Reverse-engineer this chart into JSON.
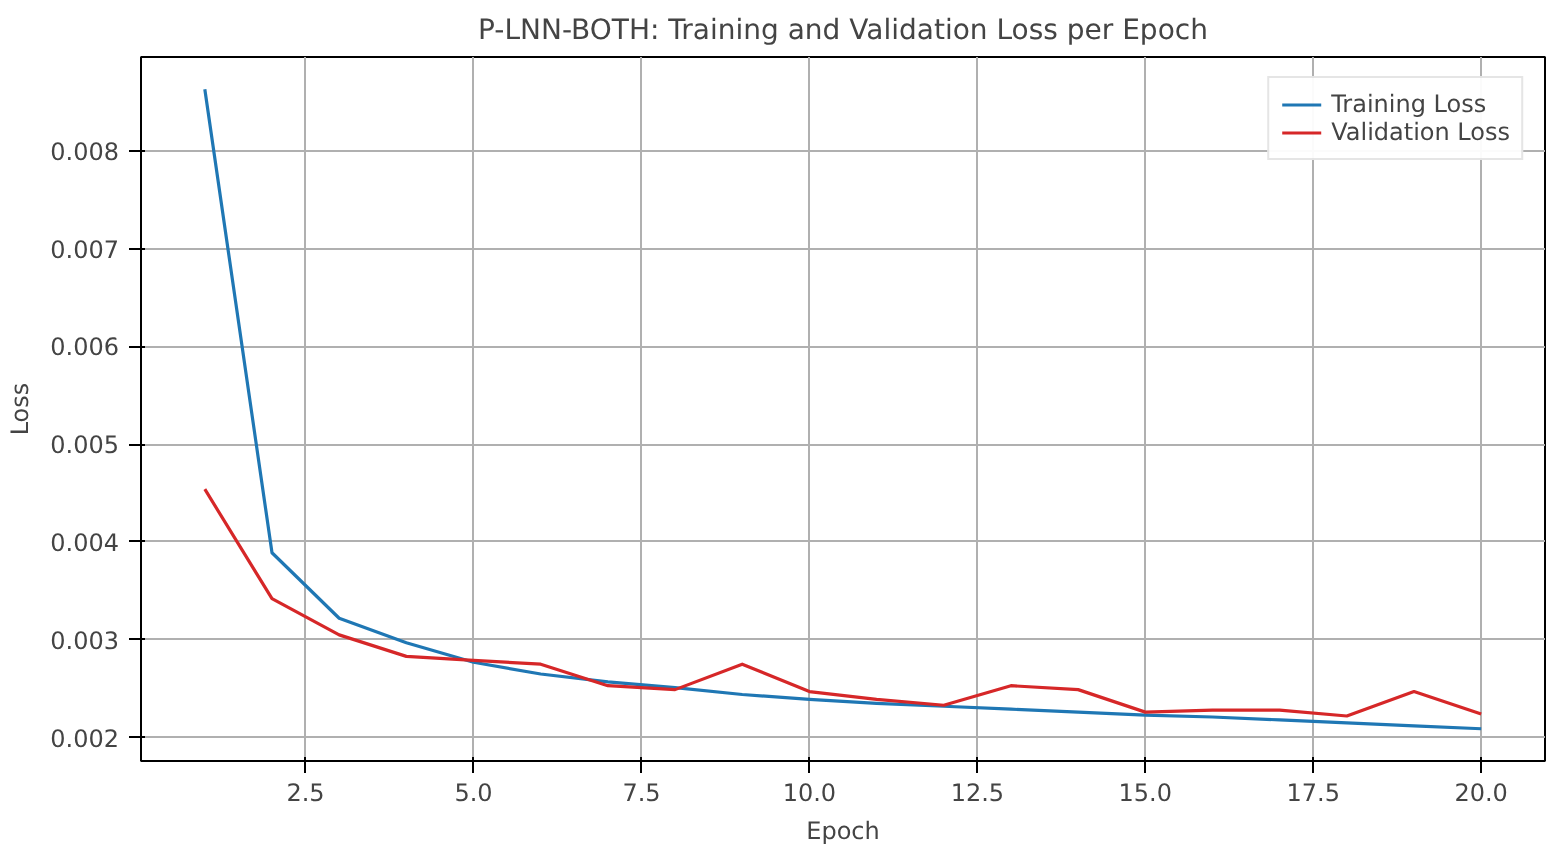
{
  "chart_data": {
    "type": "line",
    "title": "P-LNN-BOTH: Training and Validation Loss per Epoch",
    "xlabel": "Epoch",
    "ylabel": "Loss",
    "x": [
      1,
      2,
      3,
      4,
      5,
      6,
      7,
      8,
      9,
      10,
      11,
      12,
      13,
      14,
      15,
      16,
      17,
      18,
      19,
      20
    ],
    "series": [
      {
        "name": "Training Loss",
        "color": "#1f77b4",
        "values": [
          0.00863,
          0.00389,
          0.00322,
          0.00297,
          0.00277,
          0.00265,
          0.00257,
          0.00251,
          0.00244,
          0.00239,
          0.00235,
          0.00232,
          0.00229,
          0.00226,
          0.00223,
          0.00221,
          0.00218,
          0.00215,
          0.00212,
          0.00209
        ]
      },
      {
        "name": "Validation Loss",
        "color": "#d62728",
        "values": [
          0.00454,
          0.00342,
          0.00305,
          0.00283,
          0.00279,
          0.00275,
          0.00253,
          0.00249,
          0.00275,
          0.00247,
          0.00239,
          0.00233,
          0.00253,
          0.00249,
          0.00226,
          0.00228,
          0.00228,
          0.00222,
          0.00247,
          0.00224
        ]
      }
    ],
    "xlim": [
      0.05,
      20.95
    ],
    "ylim": [
      0.00176,
      0.00896
    ],
    "xticks": [
      2.5,
      {
        "value": 5,
        "label": "5.0"
      },
      7.5,
      {
        "value": 10,
        "label": "10.0"
      },
      12.5,
      {
        "value": 15,
        "label": "15.0"
      },
      17.5,
      {
        "value": 20,
        "label": "20.0"
      }
    ],
    "yticks": [
      0.002,
      0.003,
      0.004,
      0.005,
      0.006,
      0.007,
      0.008
    ],
    "grid": true,
    "legend": "top right"
  }
}
